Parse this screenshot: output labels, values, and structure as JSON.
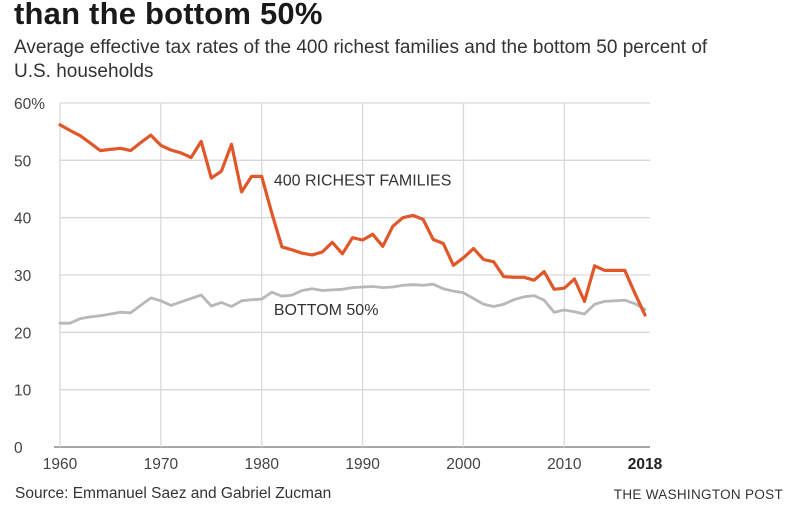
{
  "title": "than the bottom 50%",
  "subtitle": "Average effective tax rates of the 400 richest families and the bottom 50 percent of U.S. households",
  "source": "Source: Emmanuel Saez and Gabriel Zucman",
  "credit": "THE WASHINGTON POST",
  "colors": {
    "richest": "#e0582a",
    "bottom": "#b8b8b8",
    "grid": "#d9d9d9",
    "axis": "#9a9a9a"
  },
  "chart_data": {
    "type": "line",
    "title": "than the bottom 50%",
    "subtitle": "Average effective tax rates of the 400 richest families and the bottom 50 percent of U.S. households",
    "xlabel": "",
    "ylabel": "",
    "xlim": [
      1960,
      2018
    ],
    "ylim": [
      0,
      60
    ],
    "grid": true,
    "x_ticks": [
      {
        "value": 1960,
        "label": "1960",
        "bold": false
      },
      {
        "value": 1970,
        "label": "1970",
        "bold": false
      },
      {
        "value": 1980,
        "label": "1980",
        "bold": false
      },
      {
        "value": 1990,
        "label": "1990",
        "bold": false
      },
      {
        "value": 2000,
        "label": "2000",
        "bold": false
      },
      {
        "value": 2010,
        "label": "2010",
        "bold": false
      },
      {
        "value": 2018,
        "label": "2018",
        "bold": true
      }
    ],
    "y_ticks": [
      {
        "value": 0,
        "label": "0"
      },
      {
        "value": 10,
        "label": "10"
      },
      {
        "value": 20,
        "label": "20"
      },
      {
        "value": 30,
        "label": "30"
      },
      {
        "value": 40,
        "label": "40"
      },
      {
        "value": 50,
        "label": "50"
      },
      {
        "value": 60,
        "label": "60%"
      }
    ],
    "x": [
      1960,
      1961,
      1962,
      1963,
      1964,
      1965,
      1966,
      1967,
      1968,
      1969,
      1970,
      1971,
      1972,
      1973,
      1974,
      1975,
      1976,
      1977,
      1978,
      1979,
      1980,
      1981,
      1982,
      1983,
      1984,
      1985,
      1986,
      1987,
      1988,
      1989,
      1990,
      1991,
      1992,
      1993,
      1994,
      1995,
      1996,
      1997,
      1998,
      1999,
      2000,
      2001,
      2002,
      2003,
      2004,
      2005,
      2006,
      2007,
      2008,
      2009,
      2010,
      2011,
      2012,
      2013,
      2014,
      2015,
      2016,
      2017,
      2018
    ],
    "series": [
      {
        "name": "400 RICHEST FAMILIES",
        "label": "400 RICHEST FAMILIES",
        "label_anchor_year": 1981.2,
        "label_anchor_value": 45.6,
        "values": [
          56.2,
          55.2,
          54.3,
          53.0,
          51.7,
          51.9,
          52.1,
          51.7,
          53.1,
          54.4,
          52.6,
          51.8,
          51.3,
          50.5,
          53.3,
          46.9,
          48.1,
          52.8,
          44.5,
          47.2,
          47.2,
          40.8,
          34.9,
          34.4,
          33.8,
          33.5,
          34.0,
          35.7,
          33.7,
          36.5,
          36.1,
          37.1,
          35.0,
          38.5,
          40.0,
          40.4,
          39.7,
          36.2,
          35.5,
          31.7,
          33.0,
          34.6,
          32.7,
          32.3,
          29.7,
          29.6,
          29.6,
          29.1,
          30.6,
          27.5,
          27.7,
          29.3,
          25.4,
          31.6,
          30.8,
          30.8,
          30.8,
          26.8,
          23.0
        ]
      },
      {
        "name": "BOTTOM 50%",
        "label": "BOTTOM 50%",
        "label_anchor_year": 1981.2,
        "label_anchor_value": 23.0,
        "values": [
          21.6,
          21.6,
          22.4,
          22.7,
          22.9,
          23.2,
          23.5,
          23.4,
          24.7,
          26.0,
          25.5,
          24.7,
          25.3,
          25.9,
          26.5,
          24.6,
          25.2,
          24.5,
          25.5,
          25.7,
          25.8,
          27.0,
          26.3,
          26.5,
          27.3,
          27.6,
          27.3,
          27.4,
          27.5,
          27.8,
          27.9,
          28.0,
          27.8,
          27.9,
          28.2,
          28.3,
          28.2,
          28.4,
          27.6,
          27.2,
          26.9,
          25.9,
          24.9,
          24.5,
          24.9,
          25.7,
          26.2,
          26.4,
          25.6,
          23.5,
          23.9,
          23.6,
          23.2,
          24.9,
          25.4,
          25.5,
          25.6,
          25.0,
          24.0
        ]
      }
    ],
    "legend": "inline-labels"
  }
}
